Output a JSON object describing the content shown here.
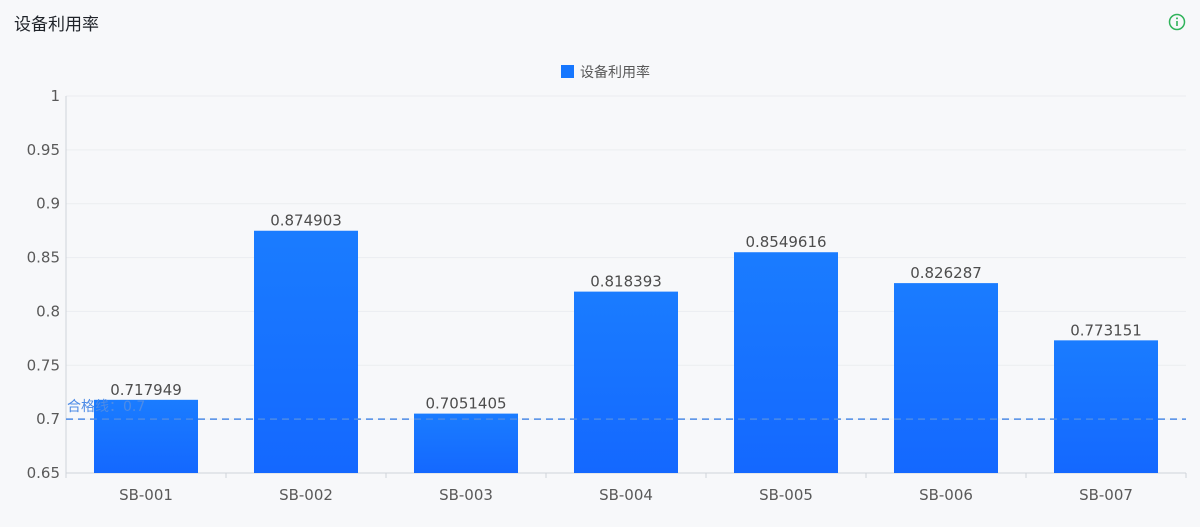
{
  "panel": {
    "title": "设备利用率",
    "info_icon": "info-circle-icon",
    "info_icon_color": "#2fb35a"
  },
  "chart_data": {
    "type": "bar",
    "title": "",
    "xlabel": "",
    "ylabel": "",
    "categories": [
      "SB-001",
      "SB-002",
      "SB-003",
      "SB-004",
      "SB-005",
      "SB-006",
      "SB-007"
    ],
    "series": [
      {
        "name": "设备利用率",
        "values": [
          0.717949,
          0.874903,
          0.7051405,
          0.818393,
          0.8549616,
          0.826287,
          0.773151
        ],
        "labels": [
          "0.717949",
          "0.874903",
          "0.7051405",
          "0.818393",
          "0.8549616",
          "0.826287",
          "0.773151"
        ],
        "color": "#1677ff"
      }
    ],
    "ylim": [
      0.65,
      1
    ],
    "yticks": [
      0.65,
      0.7,
      0.75,
      0.8,
      0.85,
      0.9,
      0.95,
      1
    ],
    "ytick_labels": [
      "0.65",
      "0.7",
      "0.75",
      "0.8",
      "0.85",
      "0.9",
      "0.95",
      "1"
    ],
    "reference_line": {
      "label": "合格线：0.7",
      "value": 0.7,
      "color": "#4d8be6",
      "style": "dashed"
    },
    "grid": true,
    "legend_position": "top-center"
  }
}
